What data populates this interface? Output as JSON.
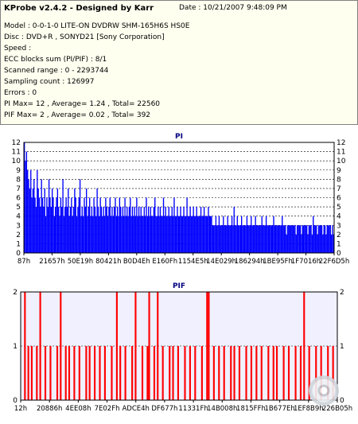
{
  "header": {
    "title": "KProbe v2.4.2 - Designed by Karr",
    "date": "Date : 10/21/2007 9:48:09 PM",
    "lines": [
      "Model : 0-0-1-0 LITE-ON DVDRW SHM-165H6S HS0E",
      "Disc : DVD+R , SONYD21 [Sony Corporation]",
      "Speed :",
      "ECC blocks sum (PI/PIF) : 8/1",
      "Scanned range : 0 - 2293744",
      "Sampling count : 126997",
      "Errors : 0",
      "PI Max= 12 , Average= 1.24 , Total= 22560",
      "PIF Max= 2 , Average= 0.02 , Total= 392"
    ]
  },
  "chart_data": [
    {
      "type": "bar",
      "title": "PI",
      "ylim": [
        0,
        12
      ],
      "yticks": [
        "0",
        "1",
        "2",
        "3",
        "4",
        "5",
        "6",
        "7",
        "8",
        "9",
        "10",
        "11",
        "12"
      ],
      "xticks": [
        "87h",
        "21657h",
        "50E19h",
        "80421h",
        "B0D4Eh",
        "E160Fh",
        "1154E5h",
        "14E029h",
        "186294h",
        "1BE95Fh",
        "1F7016h",
        "22F6D5h"
      ],
      "grid": true,
      "bar_color": "#0000ff",
      "background": "#ffffff",
      "summary": {
        "max": 12,
        "average": 1.24,
        "total": 22560
      },
      "values": [
        12,
        10,
        11,
        9,
        8,
        7,
        9,
        6,
        7,
        8,
        6,
        5,
        9,
        7,
        6,
        5,
        8,
        6,
        5,
        7,
        4,
        6,
        5,
        8,
        6,
        5,
        7,
        6,
        4,
        5,
        6,
        7,
        5,
        4,
        6,
        5,
        8,
        4,
        5,
        6,
        5,
        7,
        4,
        5,
        6,
        4,
        5,
        7,
        6,
        4,
        5,
        6,
        8,
        4,
        5,
        4,
        6,
        5,
        7,
        4,
        5,
        6,
        4,
        5,
        4,
        6,
        5,
        4,
        7,
        5,
        4,
        6,
        5,
        4,
        5,
        4,
        6,
        5,
        4,
        5,
        6,
        4,
        5,
        4,
        5,
        6,
        4,
        5,
        4,
        6,
        5,
        4,
        5,
        4,
        6,
        4,
        5,
        4,
        5,
        6,
        4,
        5,
        4,
        5,
        4,
        6,
        4,
        5,
        4,
        5,
        4,
        4,
        5,
        4,
        6,
        4,
        5,
        4,
        5,
        4,
        4,
        5,
        6,
        4,
        4,
        5,
        4,
        5,
        4,
        4,
        6,
        4,
        5,
        4,
        4,
        5,
        4,
        4,
        5,
        4,
        6,
        4,
        4,
        5,
        4,
        4,
        5,
        4,
        4,
        5,
        4,
        4,
        6,
        4,
        4,
        5,
        4,
        4,
        5,
        4,
        4,
        5,
        4,
        4,
        4,
        5,
        4,
        4,
        5,
        4,
        4,
        4,
        5,
        4,
        4,
        4,
        3,
        3,
        3,
        4,
        3,
        3,
        4,
        3,
        3,
        3,
        4,
        3,
        3,
        3,
        4,
        3,
        3,
        3,
        4,
        3,
        5,
        3,
        3,
        4,
        3,
        3,
        3,
        4,
        3,
        3,
        3,
        3,
        4,
        3,
        3,
        3,
        4,
        3,
        3,
        3,
        4,
        3,
        3,
        3,
        3,
        3,
        4,
        3,
        3,
        3,
        4,
        3,
        3,
        3,
        3,
        3,
        3,
        4,
        3,
        3,
        3,
        3,
        3,
        3,
        3,
        4,
        3,
        3,
        3,
        2,
        3,
        3,
        3,
        3,
        3,
        3,
        3,
        3,
        2,
        3,
        3,
        3,
        3,
        2,
        3,
        3,
        3,
        3,
        3,
        2,
        3,
        3,
        3,
        2,
        4,
        3,
        3,
        3,
        2,
        3,
        3,
        3,
        3,
        2,
        3,
        3,
        2,
        3,
        3,
        3,
        3,
        2,
        3,
        2
      ]
    },
    {
      "type": "bar",
      "title": "PIF",
      "ylim": [
        0,
        2
      ],
      "yticks": [
        "0",
        "1",
        "2"
      ],
      "xticks": [
        "12h",
        "20886h",
        "4EE08h",
        "7E02Fh",
        "ADCE4h",
        "DF677h",
        "11331Fh",
        "14B008h",
        "1815FFh",
        "1B677Eh",
        "1EF8B9h",
        "226B05h"
      ],
      "grid": true,
      "bar_color": "#ff0000",
      "background": "#f0f0ff",
      "summary": {
        "max": 2,
        "average": 0.02,
        "total": 392
      },
      "values": [
        0,
        0,
        2,
        0,
        1,
        0,
        1,
        0,
        0,
        1,
        0,
        2,
        0,
        0,
        1,
        0,
        0,
        1,
        0,
        0,
        0,
        1,
        0,
        2,
        0,
        0,
        1,
        0,
        1,
        0,
        0,
        1,
        0,
        0,
        1,
        0,
        0,
        0,
        1,
        0,
        1,
        0,
        0,
        1,
        0,
        0,
        1,
        0,
        0,
        1,
        0,
        0,
        0,
        1,
        0,
        0,
        2,
        0,
        1,
        0,
        0,
        1,
        0,
        0,
        0,
        1,
        0,
        2,
        0,
        0,
        0,
        1,
        0,
        0,
        1,
        2,
        0,
        0,
        1,
        0,
        2,
        0,
        0,
        1,
        0,
        0,
        0,
        1,
        0,
        1,
        0,
        0,
        1,
        0,
        0,
        0,
        1,
        0,
        0,
        1,
        0,
        0,
        1,
        0,
        0,
        0,
        1,
        0,
        0,
        2,
        2,
        0,
        0,
        1,
        0,
        0,
        1,
        0,
        0,
        1,
        0,
        0,
        0,
        1,
        0,
        1,
        0,
        0,
        1,
        0,
        0,
        0,
        1,
        0,
        0,
        1,
        0,
        0,
        1,
        0,
        0,
        1,
        0,
        0,
        0,
        1,
        0,
        0,
        1,
        0,
        1,
        0,
        0,
        0,
        1,
        0,
        0,
        1,
        0,
        0,
        0,
        1,
        0,
        0,
        1,
        0,
        2,
        0,
        0,
        1,
        0,
        0,
        0,
        1,
        0,
        0,
        1,
        0,
        0,
        0,
        1,
        0,
        0,
        1,
        0,
        0
      ]
    }
  ]
}
